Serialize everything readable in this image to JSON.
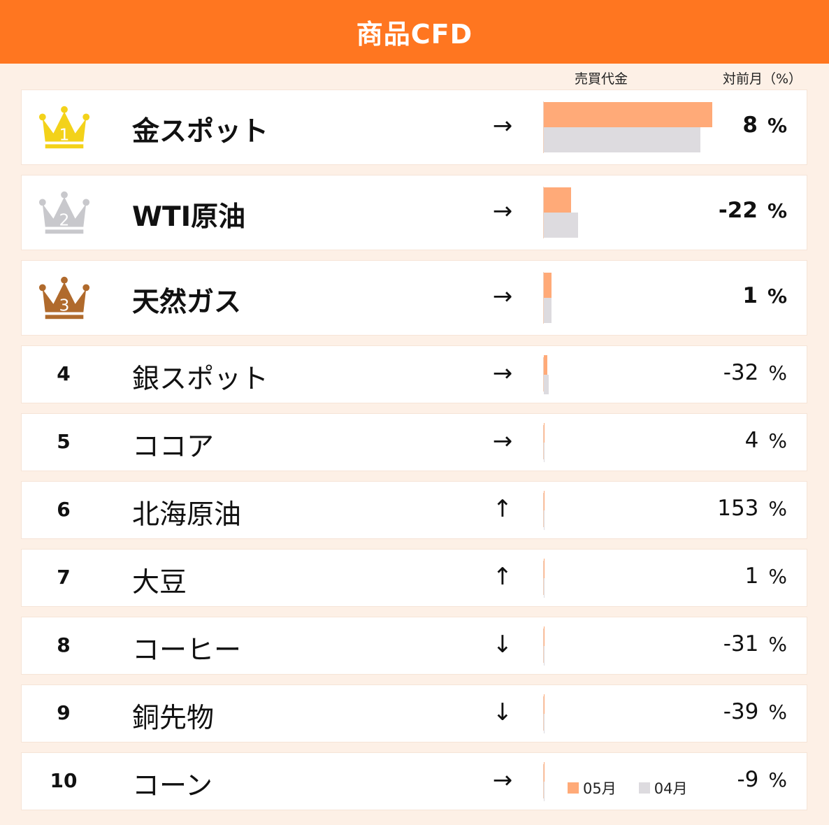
{
  "title": "商品CFD",
  "columns": {
    "value": "売買代金",
    "change": "対前月（%）"
  },
  "legend": {
    "current": "05月",
    "previous": "04月"
  },
  "colors": {
    "header": "#ff7620",
    "current": "#ffaa78",
    "previous": "#dddbdf",
    "gold": "#f3d21a",
    "silver": "#c8c8cc",
    "bronze": "#b06a2c"
  },
  "chart_data": {
    "type": "bar",
    "orientation": "horizontal",
    "title": "商品CFD",
    "categories": [
      "金スポット",
      "WTI原油",
      "天然ガス",
      "銀スポット",
      "ココア",
      "北海原油",
      "大豆",
      "コーヒー",
      "銅先物",
      "コーン"
    ],
    "series": [
      {
        "name": "05月",
        "values": [
          100,
          16,
          4.5,
          2,
          0.4,
          0.3,
          0.2,
          0.2,
          0.15,
          0.1
        ]
      },
      {
        "name": "04月",
        "values": [
          93,
          20.5,
          4.5,
          3,
          0.4,
          0.1,
          0.2,
          0.3,
          0.25,
          0.1
        ]
      }
    ],
    "xlim": [
      0,
      100
    ]
  },
  "rows": [
    {
      "rank": "1",
      "name": "金スポット",
      "arrow": "→",
      "change": "8",
      "unit": "%"
    },
    {
      "rank": "2",
      "name": "WTI原油",
      "arrow": "→",
      "change": "-22",
      "unit": "%"
    },
    {
      "rank": "3",
      "name": "天然ガス",
      "arrow": "→",
      "change": "1",
      "unit": "%"
    },
    {
      "rank": "4",
      "name": "銀スポット",
      "arrow": "→",
      "change": "-32",
      "unit": "%"
    },
    {
      "rank": "5",
      "name": "ココア",
      "arrow": "→",
      "change": "4",
      "unit": "%"
    },
    {
      "rank": "6",
      "name": "北海原油",
      "arrow": "↑",
      "change": "153",
      "unit": "%"
    },
    {
      "rank": "7",
      "name": "大豆",
      "arrow": "↑",
      "change": "1",
      "unit": "%"
    },
    {
      "rank": "8",
      "name": "コーヒー",
      "arrow": "↓",
      "change": "-31",
      "unit": "%"
    },
    {
      "rank": "9",
      "name": "銅先物",
      "arrow": "↓",
      "change": "-39",
      "unit": "%"
    },
    {
      "rank": "10",
      "name": "コーン",
      "arrow": "→",
      "change": "-9",
      "unit": "%"
    }
  ]
}
